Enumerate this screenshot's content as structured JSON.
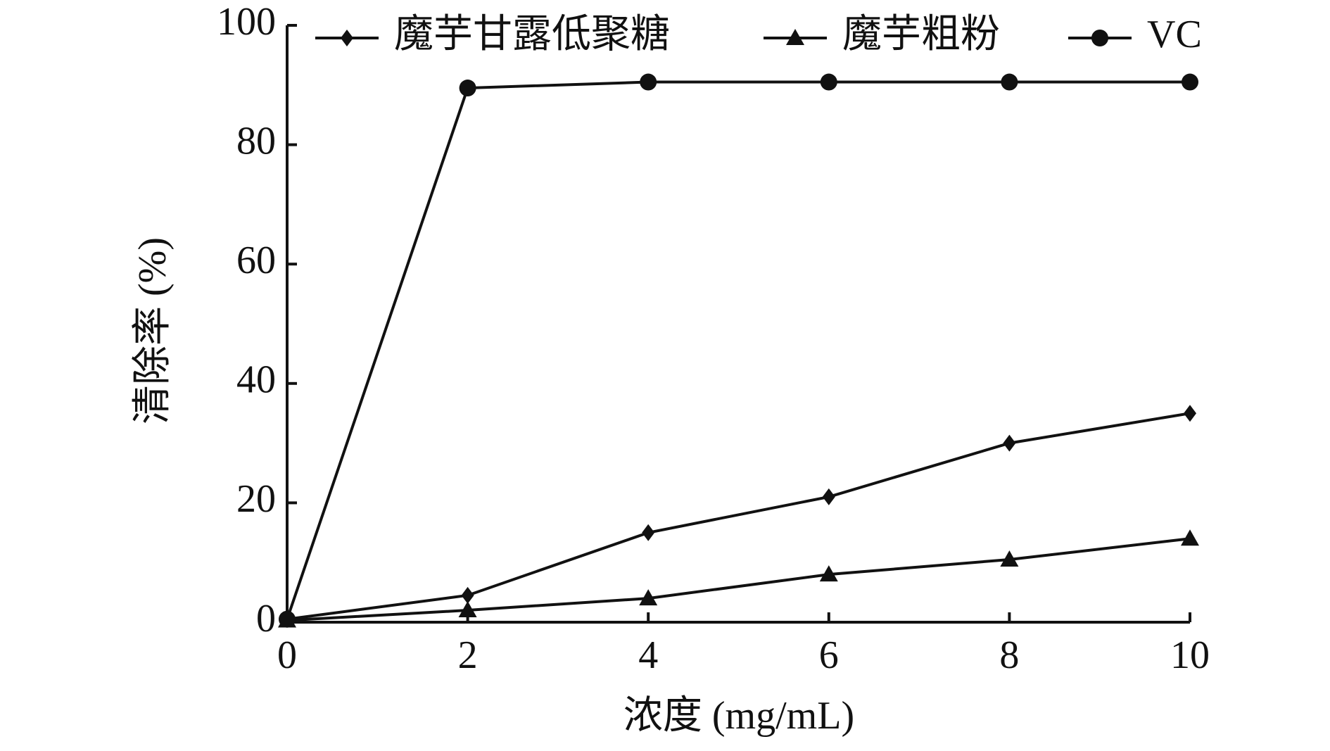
{
  "chart_data": {
    "type": "line",
    "x_label": "浓度 (mg/mL)",
    "y_label": "清除率 (%)",
    "x": [
      0,
      2,
      4,
      6,
      8,
      10
    ],
    "xlim": [
      0,
      10
    ],
    "xticks": [
      0,
      2,
      4,
      6,
      8,
      10
    ],
    "ylim": [
      0,
      100
    ],
    "yticks": [
      0,
      20,
      40,
      60,
      80,
      100
    ],
    "legend": "top",
    "series": [
      {
        "name": "魔芋甘露低聚糖",
        "color": "#111111",
        "marker": "diamond",
        "values": [
          0.5,
          4.5,
          15,
          21,
          30,
          35
        ]
      },
      {
        "name": "魔芋粗粉",
        "color": "#111111",
        "marker": "triangle",
        "values": [
          0.3,
          2,
          4,
          8,
          10.5,
          14
        ]
      },
      {
        "name": "VC",
        "color": "#111111",
        "marker": "circle",
        "values": [
          0.5,
          89.5,
          90.5,
          90.5,
          90.5,
          90.5
        ]
      }
    ]
  }
}
